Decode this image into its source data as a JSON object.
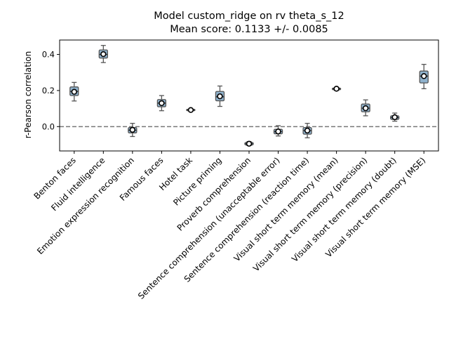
{
  "chart_data": {
    "type": "box",
    "title_line1": "Model custom_ridge on rv theta_s_12",
    "title_line2": "Mean score: 0.1133 +/- 0.0085",
    "ylabel": "r-Pearson correlation",
    "ylim": [
      -0.135,
      0.48
    ],
    "yticks": [
      0.0,
      0.2,
      0.4
    ],
    "ytick_labels": [
      "0.0",
      "0.2",
      "0.4"
    ],
    "reference_line": 0.0,
    "box_color": "#8fb2cd",
    "median_color": "#333333",
    "categories": [
      "Benton faces",
      "Fluid intelligence",
      "Emotion expression recognition",
      "Famous faces",
      "Hotel task",
      "Picture priming",
      "Proverb comprehension",
      "Sentence comprehension (unacceptable error)",
      "Sentence comprehension (reaction time)",
      "Visual short term memory (mean)",
      "Visual short term memory (precision)",
      "Visual short term memory (doubt)",
      "Visual short term memory (MSE)"
    ],
    "boxes": [
      {
        "whislo": 0.142,
        "q1": 0.172,
        "med": 0.195,
        "q3": 0.22,
        "whishi": 0.245,
        "mean": 0.193
      },
      {
        "whislo": 0.355,
        "q1": 0.38,
        "med": 0.4,
        "q3": 0.425,
        "whishi": 0.45,
        "mean": 0.402
      },
      {
        "whislo": -0.055,
        "q1": -0.035,
        "med": -0.02,
        "q3": -0.005,
        "whishi": 0.018,
        "mean": -0.018
      },
      {
        "whislo": 0.088,
        "q1": 0.11,
        "med": 0.13,
        "q3": 0.15,
        "whishi": 0.172,
        "mean": 0.13
      },
      {
        "whislo": 0.085,
        "q1": 0.088,
        "med": 0.092,
        "q3": 0.096,
        "whishi": 0.099,
        "mean": 0.092
      },
      {
        "whislo": 0.112,
        "q1": 0.143,
        "med": 0.165,
        "q3": 0.195,
        "whishi": 0.225,
        "mean": 0.168
      },
      {
        "whislo": -0.105,
        "q1": -0.102,
        "med": -0.095,
        "q3": -0.088,
        "whishi": -0.083,
        "mean": -0.095
      },
      {
        "whislo": -0.052,
        "q1": -0.04,
        "med": -0.028,
        "q3": -0.015,
        "whishi": 0.005,
        "mean": -0.027
      },
      {
        "whislo": -0.062,
        "q1": -0.042,
        "med": -0.022,
        "q3": -0.005,
        "whishi": 0.018,
        "mean": -0.022
      },
      {
        "whislo": 0.201,
        "q1": 0.204,
        "med": 0.209,
        "q3": 0.214,
        "whishi": 0.217,
        "mean": 0.21
      },
      {
        "whislo": 0.06,
        "q1": 0.082,
        "med": 0.102,
        "q3": 0.125,
        "whishi": 0.148,
        "mean": 0.102
      },
      {
        "whislo": 0.03,
        "q1": 0.04,
        "med": 0.05,
        "q3": 0.06,
        "whishi": 0.075,
        "mean": 0.052
      },
      {
        "whislo": 0.21,
        "q1": 0.242,
        "med": 0.28,
        "q3": 0.308,
        "whishi": 0.345,
        "mean": 0.28
      }
    ]
  }
}
